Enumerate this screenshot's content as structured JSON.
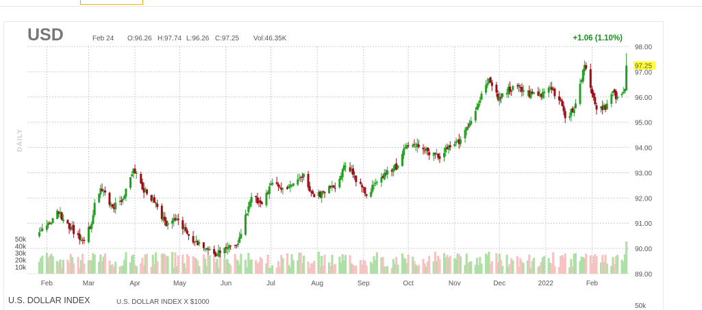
{
  "header": {
    "symbol": "USD",
    "date": "Feb 24",
    "open": "O:96.26",
    "high": "H:97.74",
    "low": "L:96.26",
    "close": "C:97.25",
    "volume": "Vol:46.35K",
    "change": "+1.06 (1.10%)"
  },
  "side_label": "DAILY",
  "footer": {
    "name": "U.S. DOLLAR INDEX",
    "description": "U.S. DOLLAR INDEX X $1000",
    "next_axis_label": "50k"
  },
  "colors": {
    "up": "#22a022",
    "down": "#9b0c16",
    "up_volume": "#aee0a6",
    "down_volume": "#f7c2c2",
    "last_price_highlight": "#ffff33",
    "change_text": "#1a8f1a"
  },
  "chart_data": {
    "type": "candlestick",
    "interval": "daily",
    "last_price_label": "97.25",
    "price_axis": {
      "ylim": [
        89.0,
        98.0
      ],
      "ticks": [
        "98.00",
        "97.00",
        "96.00",
        "95.00",
        "94.00",
        "93.00",
        "92.00",
        "91.00",
        "90.00",
        "89.00"
      ],
      "placement": "right"
    },
    "volume_axis": {
      "ylim": [
        0,
        60000
      ],
      "ticks": [
        "50k",
        "40k",
        "30k",
        "20k",
        "10k"
      ],
      "placement": "left"
    },
    "x_labels": [
      "Feb",
      "Mar",
      "Apr",
      "May",
      "Jun",
      "Jul",
      "Aug",
      "Sep",
      "Oct",
      "Nov",
      "Dec",
      "2022",
      "Feb"
    ],
    "grid": true,
    "legend": "none",
    "close_path": [
      [
        "2021-01-27",
        90.6
      ],
      [
        "2021-02-05",
        91.1
      ],
      [
        "2021-02-08",
        91.5
      ],
      [
        "2021-02-17",
        90.8
      ],
      [
        "2021-02-25",
        90.3
      ],
      [
        "2021-03-03",
        91.0
      ],
      [
        "2021-03-05",
        91.8
      ],
      [
        "2021-03-10",
        92.4
      ],
      [
        "2021-03-17",
        91.6
      ],
      [
        "2021-03-24",
        92.0
      ],
      [
        "2021-03-31",
        93.2
      ],
      [
        "2021-04-06",
        92.3
      ],
      [
        "2021-04-14",
        91.8
      ],
      [
        "2021-04-22",
        91.0
      ],
      [
        "2021-04-30",
        91.2
      ],
      [
        "2021-05-07",
        90.4
      ],
      [
        "2021-05-14",
        90.2
      ],
      [
        "2021-05-25",
        89.8
      ],
      [
        "2021-06-01",
        90.0
      ],
      [
        "2021-06-08",
        90.1
      ],
      [
        "2021-06-11",
        90.5
      ],
      [
        "2021-06-15",
        91.5
      ],
      [
        "2021-06-18",
        92.1
      ],
      [
        "2021-06-25",
        91.8
      ],
      [
        "2021-07-02",
        92.6
      ],
      [
        "2021-07-09",
        92.4
      ],
      [
        "2021-07-16",
        92.6
      ],
      [
        "2021-07-23",
        92.9
      ],
      [
        "2021-07-30",
        92.0
      ],
      [
        "2021-08-06",
        92.3
      ],
      [
        "2021-08-13",
        92.5
      ],
      [
        "2021-08-20",
        93.4
      ],
      [
        "2021-08-27",
        92.7
      ],
      [
        "2021-09-03",
        92.2
      ],
      [
        "2021-09-10",
        92.6
      ],
      [
        "2021-09-17",
        93.0
      ],
      [
        "2021-09-24",
        93.3
      ],
      [
        "2021-09-30",
        94.2
      ],
      [
        "2021-10-08",
        94.0
      ],
      [
        "2021-10-15",
        93.8
      ],
      [
        "2021-10-22",
        93.6
      ],
      [
        "2021-10-29",
        94.1
      ],
      [
        "2021-11-05",
        94.3
      ],
      [
        "2021-11-12",
        95.1
      ],
      [
        "2021-11-19",
        96.1
      ],
      [
        "2021-11-24",
        96.8
      ],
      [
        "2021-11-30",
        96.0
      ],
      [
        "2021-12-07",
        96.3
      ],
      [
        "2021-12-14",
        96.4
      ],
      [
        "2021-12-21",
        96.1
      ],
      [
        "2021-12-28",
        96.0
      ],
      [
        "2022-01-04",
        96.3
      ],
      [
        "2022-01-10",
        96.0
      ],
      [
        "2022-01-14",
        95.1
      ],
      [
        "2022-01-21",
        95.7
      ],
      [
        "2022-01-27",
        97.2
      ],
      [
        "2022-02-02",
        96.0
      ],
      [
        "2022-02-04",
        95.4
      ],
      [
        "2022-02-10",
        95.6
      ],
      [
        "2022-02-15",
        96.1
      ],
      [
        "2022-02-18",
        96.0
      ],
      [
        "2022-02-23",
        96.2
      ],
      [
        "2022-02-24",
        97.25
      ]
    ],
    "last_candle": {
      "date": "2022-02-24",
      "open": 96.26,
      "high": 97.74,
      "low": 96.26,
      "close": 97.25,
      "volume": 46350
    }
  }
}
